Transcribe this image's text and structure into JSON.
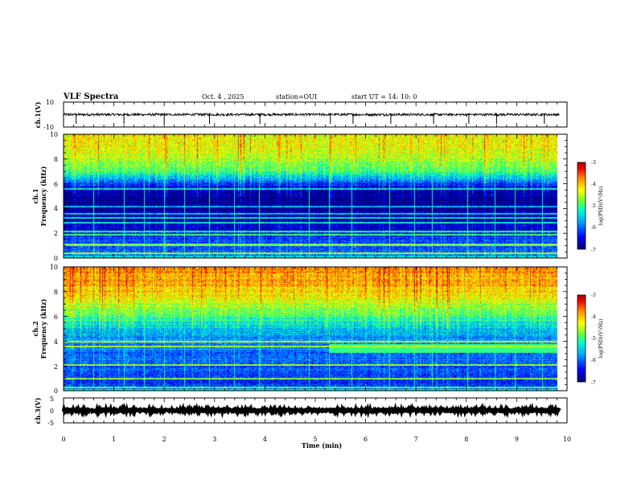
{
  "header": {
    "title": "VLF Spectra",
    "date": "Oct. 4 , 2025",
    "station": "station=OUI",
    "start": "start UT =  14: 10: 0"
  },
  "colors": {
    "colormap": [
      "#00007a",
      "#0000ff",
      "#00aaff",
      "#00ffcc",
      "#66ff33",
      "#ffff00",
      "#ff8800",
      "#ee0000",
      "#aa0000"
    ],
    "background_dark": "#000015",
    "trace": "#000000"
  },
  "chart_data": [
    {
      "id": "ch1-waveform",
      "type": "line",
      "ylabel": "ch.1(V)",
      "ylim": [
        -10,
        10
      ],
      "yticks": [
        "10",
        "-10"
      ],
      "xlim": [
        0,
        10
      ],
      "baseline": 0,
      "noise_amplitude": 1.0,
      "spike_times_min": [
        0.25,
        1.2,
        2.0,
        2.9,
        3.9,
        5.3,
        5.75,
        6.5,
        7.35,
        8.05,
        8.6,
        9.55
      ]
    },
    {
      "id": "ch1-spectrogram",
      "type": "heatmap",
      "ylabel_line1": "ch.1",
      "ylabel_line2": "Frequency (kHz)",
      "ylim": [
        0,
        10
      ],
      "yticks": [
        "10",
        "8",
        "6",
        "4",
        "2",
        "0"
      ],
      "xlim": [
        0,
        9.85
      ],
      "colorbar": {
        "label": "log(PSD)(V²/Hz)",
        "range": [
          -7,
          -3
        ],
        "ticks": [
          "-3",
          "-4",
          "-5",
          "-6",
          "-7"
        ]
      },
      "profile_kHz_vs_logPSD": [
        [
          0,
          -5.6
        ],
        [
          0.5,
          -6.0
        ],
        [
          1.5,
          -6.2
        ],
        [
          2.5,
          -6.6
        ],
        [
          3.5,
          -6.9
        ],
        [
          4.5,
          -7.0
        ],
        [
          5.5,
          -6.8
        ],
        [
          6.5,
          -5.6
        ],
        [
          7.0,
          -5.0
        ],
        [
          8.0,
          -4.6
        ],
        [
          9.0,
          -4.3
        ],
        [
          10.0,
          -4.2
        ]
      ],
      "line_emissions_kHz": [
        0.4,
        1.1,
        1.9,
        2.2,
        2.9,
        3.3,
        3.6,
        4.2,
        5.6
      ],
      "spike_times_min": [
        0.6,
        1.2,
        1.6,
        2.0,
        2.4,
        2.9,
        3.4,
        3.9,
        4.9,
        5.3,
        5.75,
        6.5,
        7.0,
        7.35,
        8.05,
        8.6,
        9.0,
        9.55
      ]
    },
    {
      "id": "ch2-spectrogram",
      "type": "heatmap",
      "ylabel_line1": "ch.2",
      "ylabel_line2": "Frequency (kHz)",
      "ylim": [
        0,
        10
      ],
      "yticks": [
        "10",
        "8",
        "6",
        "4",
        "2",
        "0"
      ],
      "xlim": [
        0,
        9.85
      ],
      "colorbar": {
        "label": "log(PSD)(V²/Hz)",
        "range": [
          -7,
          -3
        ],
        "ticks": [
          "-3",
          "-4",
          "-5",
          "-6",
          "-7"
        ]
      },
      "profile_kHz_vs_logPSD": [
        [
          0,
          -6.2
        ],
        [
          1.0,
          -6.2
        ],
        [
          2.0,
          -6.1
        ],
        [
          3.0,
          -6.0
        ],
        [
          4.0,
          -5.9
        ],
        [
          5.0,
          -5.6
        ],
        [
          6.0,
          -5.0
        ],
        [
          7.0,
          -4.5
        ],
        [
          8.0,
          -4.1
        ],
        [
          9.0,
          -3.9
        ],
        [
          10.0,
          -3.8
        ]
      ],
      "line_emissions_kHz": [
        0.3,
        1.0,
        2.1,
        3.6,
        4.0
      ],
      "band_segment": {
        "start_min": 5.3,
        "end_min": 9.85,
        "low_kHz": 3.1,
        "high_kHz": 3.8,
        "logPSD": -5.0
      },
      "spike_times_min": [
        0.6,
        1.2,
        1.6,
        2.0,
        2.4,
        2.9,
        3.4,
        3.9,
        4.9,
        5.3,
        5.75,
        6.5,
        7.0,
        7.35,
        8.05,
        8.6,
        9.0,
        9.55
      ]
    },
    {
      "id": "ch3-waveform",
      "type": "line",
      "ylabel": "ch.3(V)",
      "ylim": [
        -5,
        5
      ],
      "yticks": [
        "5",
        "0",
        "-5"
      ],
      "xlim": [
        0,
        10
      ],
      "baseline": 0,
      "noise_amplitude": 0.4,
      "spike_times_min": []
    }
  ],
  "xaxis": {
    "label": "Time (min)",
    "ticks": [
      "0",
      "1",
      "2",
      "3",
      "4",
      "5",
      "6",
      "7",
      "8",
      "9",
      "10"
    ]
  }
}
